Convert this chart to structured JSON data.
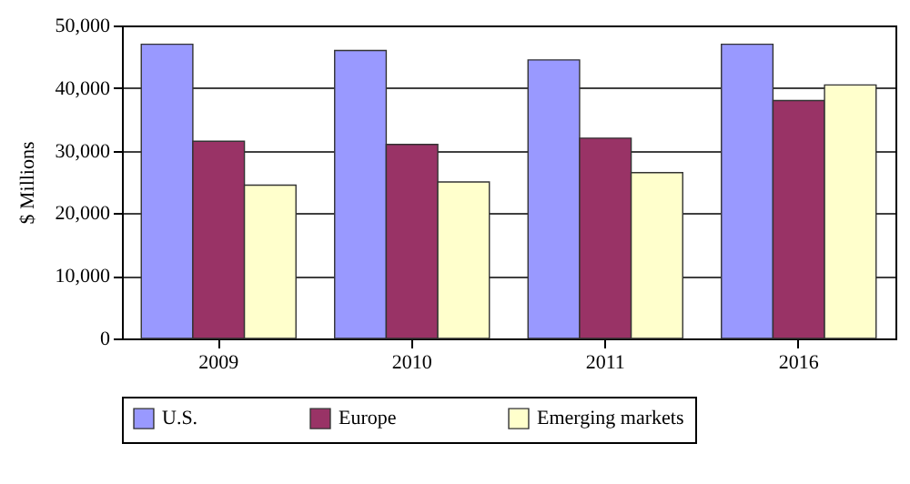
{
  "chart_data": {
    "type": "bar",
    "ylabel": "$ Millions",
    "categories": [
      "2009",
      "2010",
      "2011",
      "2016"
    ],
    "series": [
      {
        "name": "U.S.",
        "color": "#9999ff",
        "values": [
          47000,
          46000,
          44500,
          47000
        ]
      },
      {
        "name": "Europe",
        "color": "#993366",
        "values": [
          31500,
          31000,
          32000,
          38000
        ]
      },
      {
        "name": "Emerging markets",
        "color": "#ffffcc",
        "values": [
          24500,
          25000,
          26500,
          40500
        ]
      }
    ],
    "ylim": [
      0,
      50000
    ],
    "yticks": [
      0,
      {
        "value": 10000,
        "label": "10,000"
      },
      {
        "value": 20000,
        "label": "20,000"
      },
      {
        "value": 30000,
        "label": "30,000"
      },
      {
        "value": 40000,
        "label": "40,000"
      },
      {
        "value": 50000,
        "label": "50,000"
      }
    ],
    "grid": "y",
    "legend": "bottom"
  }
}
